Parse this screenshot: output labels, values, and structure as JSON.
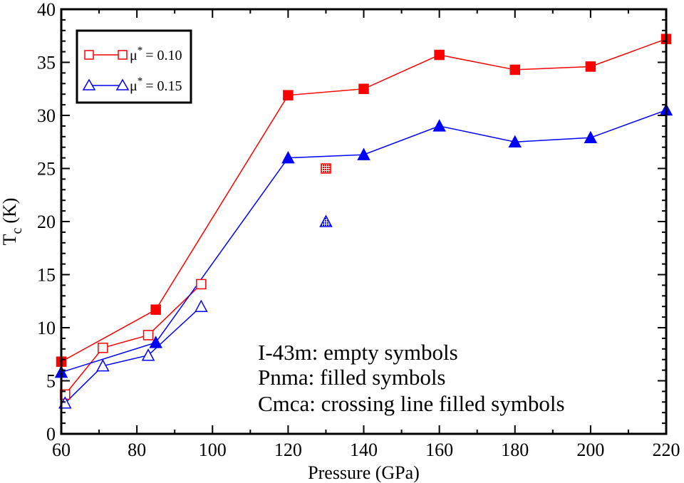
{
  "chart_data": {
    "type": "line",
    "title": "",
    "xlabel": "Pressure (GPa)",
    "ylabel_main": "T",
    "ylabel_sub": "c",
    "ylabel_unit": "(K)",
    "xlim": [
      60,
      220
    ],
    "ylim": [
      0,
      40
    ],
    "xticks": [
      60,
      80,
      100,
      120,
      140,
      160,
      180,
      200,
      220
    ],
    "yticks": [
      0,
      5,
      10,
      15,
      20,
      25,
      30,
      35,
      40
    ],
    "grid": false,
    "legend_position": "top-left",
    "series": [
      {
        "name": "μ* = 0.10",
        "legend_mu": "μ",
        "legend_star": "*",
        "legend_value": "= 0.10",
        "color": "#ff0000",
        "marker": "square",
        "lines": [
          [
            [
              61,
              3.7
            ],
            [
              71,
              8.1
            ],
            [
              83,
              9.3
            ],
            [
              97,
              14.1
            ]
          ],
          [
            [
              60,
              6.8
            ],
            [
              85,
              11.7
            ],
            [
              120,
              31.9
            ],
            [
              140,
              32.5
            ],
            [
              160,
              35.7
            ],
            [
              180,
              34.3
            ],
            [
              200,
              34.6
            ],
            [
              220,
              37.2
            ]
          ]
        ],
        "points_empty": [
          [
            61,
            3.7
          ],
          [
            71,
            8.1
          ],
          [
            83,
            9.3
          ],
          [
            97,
            14.1
          ]
        ],
        "points_filled": [
          [
            60,
            6.8
          ],
          [
            85,
            11.7
          ],
          [
            120,
            31.9
          ],
          [
            140,
            32.5
          ],
          [
            160,
            35.7
          ],
          [
            180,
            34.3
          ],
          [
            200,
            34.6
          ],
          [
            220,
            37.2
          ]
        ],
        "points_hatched": [
          [
            130,
            25.0
          ]
        ]
      },
      {
        "name": "μ* = 0.15",
        "legend_mu": "μ",
        "legend_star": "*",
        "legend_value": "= 0.15",
        "color": "#0000ff",
        "marker": "triangle",
        "lines": [
          [
            [
              61,
              2.9
            ],
            [
              71,
              6.4
            ],
            [
              83,
              7.4
            ],
            [
              97,
              12.0
            ]
          ],
          [
            [
              60,
              5.8
            ],
            [
              85,
              8.6
            ],
            [
              120,
              26.0
            ],
            [
              140,
              26.3
            ],
            [
              160,
              29.0
            ],
            [
              180,
              27.5
            ],
            [
              200,
              27.9
            ],
            [
              220,
              30.5
            ]
          ]
        ],
        "points_empty": [
          [
            61,
            2.9
          ],
          [
            71,
            6.4
          ],
          [
            83,
            7.4
          ],
          [
            97,
            12.0
          ]
        ],
        "points_filled": [
          [
            60,
            5.8
          ],
          [
            85,
            8.6
          ],
          [
            120,
            26.0
          ],
          [
            140,
            26.3
          ],
          [
            160,
            29.0
          ],
          [
            180,
            27.5
          ],
          [
            200,
            27.9
          ],
          [
            220,
            30.5
          ]
        ],
        "points_hatched": [
          [
            130,
            20.0
          ]
        ]
      }
    ],
    "annotations": [
      "I-43m: empty symbols",
      "Pnma: filled symbols",
      "Cmca: crossing line filled symbols"
    ]
  }
}
